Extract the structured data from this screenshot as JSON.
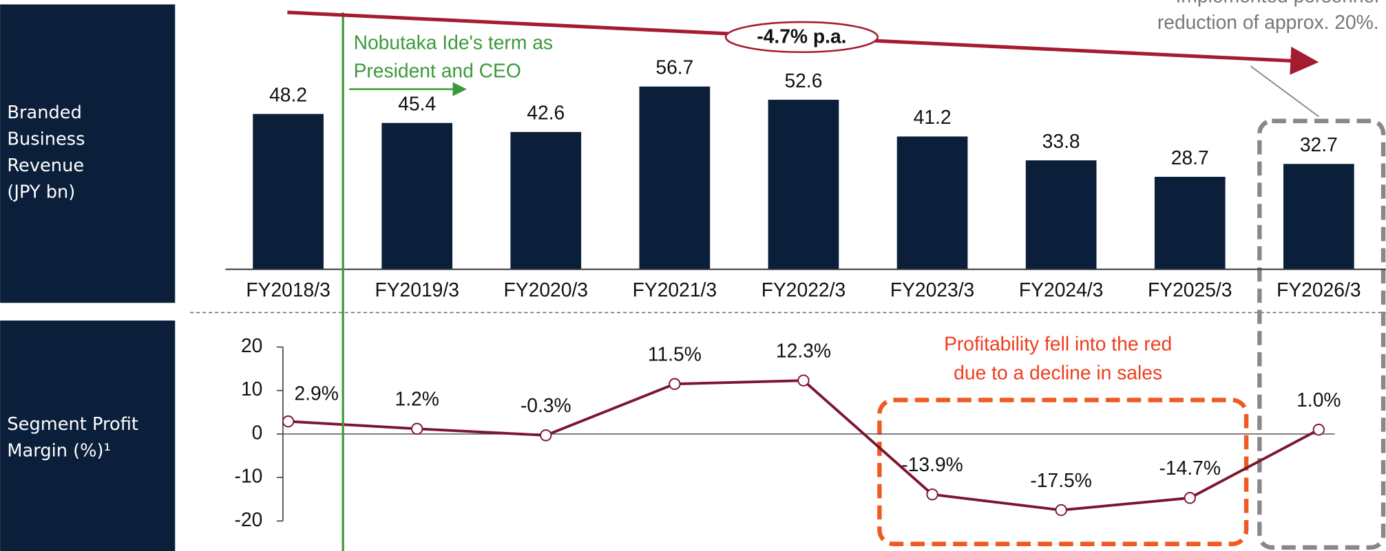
{
  "chart_data": [
    {
      "type": "bar",
      "y_label": [
        "Branded",
        "Business",
        "Revenue",
        "(JPY bn)"
      ],
      "categories": [
        "FY2018/3",
        "FY2019/3",
        "FY2020/3",
        "FY2021/3",
        "FY2022/3",
        "FY2023/3",
        "FY2024/3",
        "FY2025/3",
        "FY2026/3"
      ],
      "values": [
        48.2,
        45.4,
        42.6,
        56.7,
        52.6,
        41.2,
        33.8,
        28.7,
        32.7
      ],
      "color": "#0b1f3a"
    },
    {
      "type": "line",
      "y_label": [
        "Segment Profit",
        "Margin (%)¹"
      ],
      "values": [
        2.9,
        1.2,
        -0.3,
        11.5,
        12.3,
        -13.9,
        -17.5,
        -14.7,
        1.0
      ],
      "value_labels": [
        "2.9%",
        "1.2%",
        "-0.3%",
        "11.5%",
        "12.3%",
        "-13.9%",
        "-17.5%",
        "-14.7%",
        "1.0%"
      ],
      "ylim": [
        -20,
        20
      ],
      "yticks": [
        -20,
        -10,
        0,
        10,
        20
      ],
      "color": "#7b1530"
    }
  ],
  "annotations": {
    "ceo_term": [
      "Nobutaka Ide's term as",
      "President and CEO"
    ],
    "trend": "-4.7% p.a.",
    "red_note": [
      "Profitability fell into the red",
      "due to a decline in sales"
    ],
    "reduction_note": [
      "Implemented personnel",
      "reduction of approx. 20%."
    ]
  }
}
